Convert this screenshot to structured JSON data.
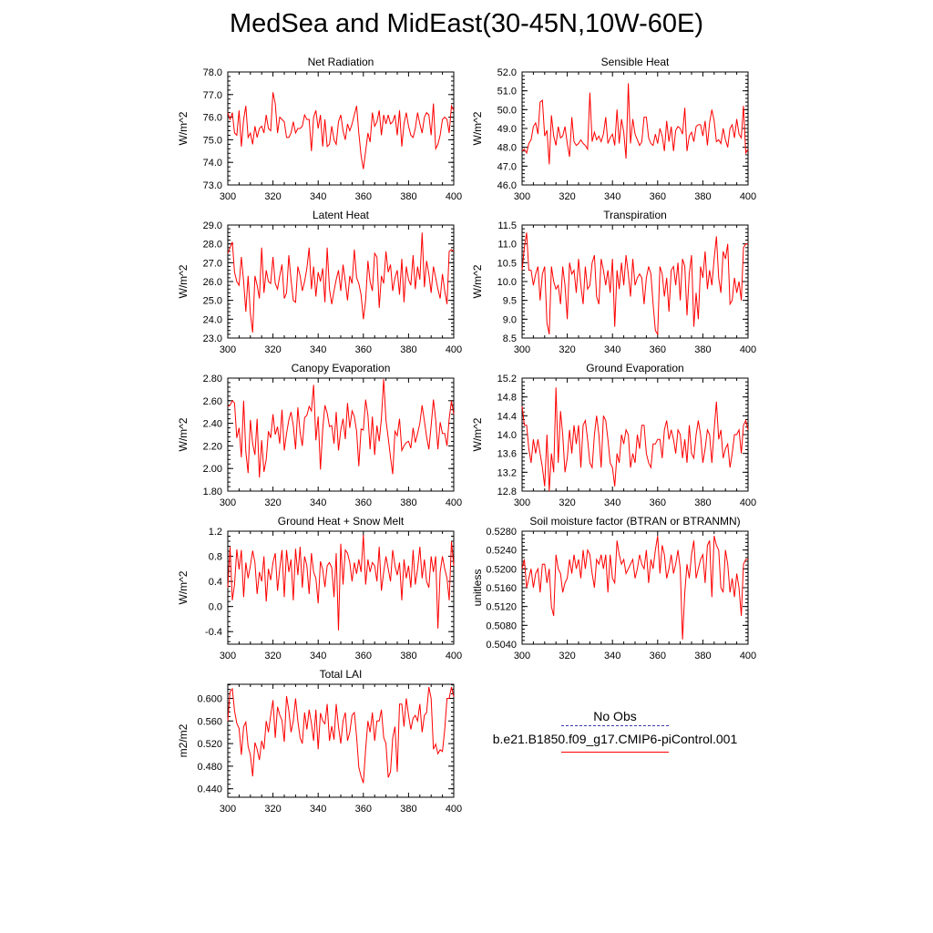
{
  "title": "MedSea and MidEast(30-45N,10W-60E)",
  "colors": {
    "series": "#ff0000",
    "axis": "#000000",
    "obs": "#3a3ab0"
  },
  "legend": {
    "obs_label": "No Obs",
    "case_label": "b.e21.B1850.f09_g17.CMIP6-piControl.001"
  },
  "chart_data": [
    {
      "type": "line",
      "title": "Net Radiation",
      "ylabel": "W/m^2",
      "xlim": [
        300,
        400
      ],
      "ylim": [
        73.0,
        78.0
      ],
      "xticks": [
        300,
        320,
        340,
        360,
        380,
        400
      ],
      "yticks": [
        73.0,
        74.0,
        75.0,
        76.0,
        77.0,
        78.0
      ],
      "ytick_labels": [
        "73.0",
        "74.0",
        "75.0",
        "76.0",
        "77.0",
        "78.0"
      ],
      "x_start": 300,
      "values": [
        76.2,
        75.9,
        76.2,
        75.3,
        75.2,
        76.3,
        74.7,
        75.9,
        76.5,
        75.1,
        75.3,
        74.8,
        75.6,
        75.1,
        75.5,
        75.6,
        75.3,
        76.1,
        75.5,
        75.4,
        77.1,
        76.6,
        75.3,
        76.0,
        75.9,
        75.8,
        75.1,
        75.1,
        75.3,
        75.8,
        75.3,
        75.5,
        75.5,
        75.6,
        76.1,
        75.9,
        75.9,
        74.5,
        76.0,
        76.3,
        75.5,
        76.1,
        74.7,
        75.9,
        74.7,
        74.8,
        75.6,
        75.0,
        74.8,
        75.8,
        76.1,
        75.4,
        75.0,
        75.7,
        75.4,
        75.7,
        76.1,
        76.5,
        75.3,
        74.3,
        73.7,
        74.5,
        75.3,
        74.9,
        76.2,
        75.6,
        75.8,
        76.3,
        75.2,
        76.1,
        75.7,
        76.1,
        75.7,
        75.8,
        76.1,
        75.2,
        76.3,
        74.7,
        75.7,
        76.2,
        75.6,
        75.2,
        75.1,
        75.5,
        76.2,
        75.7,
        75.3,
        76.0,
        76.2,
        76.1,
        75.2,
        76.6,
        74.6,
        74.8,
        75.2,
        75.9,
        76.0,
        75.9,
        75.3,
        76.5,
        76.3
      ]
    },
    {
      "type": "line",
      "title": "Sensible Heat",
      "ylabel": "W/m^2",
      "xlim": [
        300,
        400
      ],
      "ylim": [
        46.0,
        52.0
      ],
      "xticks": [
        300,
        320,
        340,
        360,
        380,
        400
      ],
      "yticks": [
        46.0,
        47.0,
        48.0,
        49.0,
        50.0,
        51.0,
        52.0
      ],
      "ytick_labels": [
        "46.0",
        "47.0",
        "48.0",
        "49.0",
        "50.0",
        "51.0",
        "52.0"
      ],
      "x_start": 300,
      "values": [
        47.8,
        47.9,
        47.7,
        48.2,
        48.4,
        49.1,
        49.3,
        48.7,
        50.4,
        50.5,
        48.6,
        48.9,
        47.1,
        49.7,
        48.6,
        48.1,
        49.1,
        48.5,
        48.6,
        49.1,
        48.2,
        47.5,
        49.6,
        48.3,
        48.1,
        48.2,
        48.4,
        48.2,
        48.1,
        47.9,
        50.9,
        48.3,
        48.8,
        48.4,
        48.6,
        48.3,
        48.7,
        49.6,
        48.2,
        48.5,
        48.7,
        48.1,
        50.0,
        48.2,
        49.5,
        48.8,
        47.4,
        51.4,
        48.2,
        49.5,
        48.7,
        48.4,
        48.1,
        48.3,
        49.6,
        49.6,
        48.5,
        48.2,
        48.1,
        48.7,
        48.2,
        49.0,
        48.6,
        47.8,
        49.4,
        48.3,
        49.1,
        47.8,
        48.9,
        49.1,
        49.0,
        48.7,
        50.1,
        47.8,
        48.6,
        48.8,
        48.3,
        49.1,
        49.2,
        49.2,
        48.6,
        49.4,
        48.1,
        49.3,
        50.0,
        49.4,
        48.3,
        48.4,
        48.2,
        49.0,
        48.4,
        48.0,
        49.0,
        49.2,
        48.5,
        49.5,
        48.7,
        48.5,
        50.2,
        47.7,
        47.9
      ]
    },
    {
      "type": "line",
      "title": "Latent Heat",
      "ylabel": "W/m^2",
      "xlim": [
        300,
        400
      ],
      "ylim": [
        23.0,
        29.0
      ],
      "xticks": [
        300,
        320,
        340,
        360,
        380,
        400
      ],
      "yticks": [
        23.0,
        24.0,
        25.0,
        26.0,
        27.0,
        28.0,
        29.0
      ],
      "ytick_labels": [
        "23.0",
        "24.0",
        "25.0",
        "26.0",
        "27.0",
        "28.0",
        "29.0"
      ],
      "x_start": 300,
      "values": [
        27.5,
        27.8,
        28.1,
        26.5,
        26.0,
        25.8,
        27.3,
        26.0,
        24.4,
        26.3,
        24.3,
        23.3,
        26.3,
        25.8,
        25.1,
        27.8,
        25.4,
        26.6,
        26.0,
        25.9,
        27.3,
        25.9,
        25.6,
        26.3,
        26.9,
        25.1,
        25.4,
        27.4,
        26.1,
        25.0,
        24.9,
        26.8,
        26.3,
        25.5,
        26.0,
        26.7,
        27.8,
        25.6,
        26.8,
        25.2,
        26.5,
        26.0,
        26.7,
        24.9,
        27.8,
        25.6,
        24.8,
        25.5,
        26.1,
        26.6,
        25.5,
        26.9,
        26.0,
        25.0,
        26.3,
        25.9,
        27.7,
        26.2,
        25.9,
        25.3,
        24.0,
        25.0,
        27.1,
        26.0,
        25.5,
        27.5,
        27.3,
        24.6,
        26.3,
        25.9,
        27.6,
        26.5,
        26.9,
        25.5,
        26.2,
        26.6,
        25.3,
        27.2,
        24.9,
        26.8,
        26.1,
        25.8,
        27.4,
        25.6,
        26.8,
        26.1,
        28.6,
        25.7,
        27.1,
        26.4,
        25.4,
        26.8,
        26.2,
        25.6,
        25.1,
        26.4,
        25.5,
        24.8,
        27.6,
        27.7,
        27.6
      ]
    },
    {
      "type": "line",
      "title": "Transpiration",
      "ylabel": "W/m^2",
      "xlim": [
        300,
        400
      ],
      "ylim": [
        8.5,
        11.5
      ],
      "xticks": [
        300,
        320,
        340,
        360,
        380,
        400
      ],
      "yticks": [
        8.5,
        9.0,
        9.5,
        10.0,
        10.5,
        11.0,
        11.5
      ],
      "ytick_labels": [
        "8.5",
        "9.0",
        "9.5",
        "10.0",
        "10.5",
        "11.0",
        "11.5"
      ],
      "x_start": 300,
      "values": [
        10.3,
        10.9,
        11.3,
        10.3,
        10.3,
        9.9,
        10.2,
        10.4,
        9.5,
        10.2,
        10.4,
        8.9,
        8.6,
        10.4,
        10.0,
        9.8,
        9.9,
        9.4,
        10.4,
        9.9,
        9.0,
        10.5,
        10.2,
        10.3,
        9.7,
        10.6,
        9.9,
        9.4,
        10.4,
        9.8,
        9.9,
        10.5,
        10.7,
        9.6,
        9.4,
        10.6,
        10.3,
        9.9,
        10.3,
        9.7,
        10.6,
        8.8,
        10.3,
        9.8,
        10.5,
        9.9,
        10.7,
        10.2,
        9.6,
        10.6,
        9.9,
        10.1,
        10.2,
        10.1,
        9.4,
        10.1,
        10.4,
        10.2,
        9.4,
        8.7,
        8.6,
        10.4,
        10.2,
        9.6,
        10.1,
        9.2,
        10.3,
        10.4,
        9.9,
        10.5,
        9.5,
        10.6,
        10.4,
        9.1,
        10.2,
        10.7,
        8.8,
        9.7,
        9.0,
        10.4,
        10.1,
        10.8,
        9.8,
        10.3,
        9.9,
        10.6,
        11.2,
        10.1,
        9.7,
        10.8,
        10.6,
        11.0,
        9.4,
        9.5,
        10.1,
        9.7,
        10.0,
        9.5,
        10.9,
        11.0,
        11.0
      ]
    },
    {
      "type": "line",
      "title": "Canopy Evaporation",
      "ylabel": "W/m^2",
      "xlim": [
        300,
        400
      ],
      "ylim": [
        1.8,
        2.8
      ],
      "xticks": [
        300,
        320,
        340,
        360,
        380,
        400
      ],
      "yticks": [
        1.8,
        2.0,
        2.2,
        2.4,
        2.6,
        2.8
      ],
      "ytick_labels": [
        "1.80",
        "2.00",
        "2.20",
        "2.40",
        "2.60",
        "2.80"
      ],
      "x_start": 300,
      "values": [
        2.55,
        2.56,
        2.6,
        2.58,
        2.27,
        2.36,
        2.1,
        2.6,
        2.15,
        1.96,
        2.43,
        2.22,
        2.12,
        2.44,
        1.92,
        2.25,
        1.97,
        2.08,
        2.33,
        2.27,
        2.48,
        2.3,
        2.37,
        2.22,
        2.52,
        2.16,
        2.31,
        2.43,
        2.5,
        2.38,
        2.17,
        2.54,
        2.32,
        2.2,
        2.45,
        2.47,
        2.55,
        2.51,
        2.74,
        2.25,
        2.46,
        1.99,
        2.35,
        2.56,
        2.49,
        2.37,
        2.38,
        2.22,
        2.5,
        2.16,
        2.34,
        2.44,
        2.26,
        2.58,
        2.36,
        2.51,
        2.46,
        2.33,
        2.02,
        2.35,
        2.34,
        2.61,
        2.47,
        2.17,
        2.46,
        2.12,
        2.38,
        2.24,
        2.44,
        2.79,
        2.43,
        2.27,
        2.1,
        1.95,
        2.33,
        2.29,
        2.44,
        2.16,
        2.2,
        2.23,
        2.24,
        2.18,
        2.36,
        2.23,
        2.31,
        2.4,
        2.56,
        2.42,
        2.28,
        2.17,
        2.38,
        2.61,
        2.43,
        2.17,
        2.41,
        2.31,
        2.31,
        2.2,
        2.44,
        2.6,
        2.48
      ]
    },
    {
      "type": "line",
      "title": "Ground Evaporation",
      "ylabel": "W/m^2",
      "xlim": [
        300,
        400
      ],
      "ylim": [
        12.8,
        15.2
      ],
      "xticks": [
        300,
        320,
        340,
        360,
        380,
        400
      ],
      "yticks": [
        12.8,
        13.2,
        13.6,
        14.0,
        14.4,
        14.8,
        15.2
      ],
      "ytick_labels": [
        "12.8",
        "13.2",
        "13.6",
        "14.0",
        "14.4",
        "14.8",
        "15.2"
      ],
      "x_start": 300,
      "values": [
        14.6,
        14.2,
        14.2,
        13.7,
        13.4,
        13.9,
        13.6,
        13.9,
        13.6,
        13.3,
        12.9,
        14.0,
        12.8,
        13.6,
        13.2,
        15.0,
        13.4,
        14.5,
        14.0,
        13.2,
        13.5,
        14.1,
        13.6,
        14.2,
        13.8,
        14.2,
        13.3,
        14.2,
        14.3,
        13.9,
        13.4,
        13.3,
        14.0,
        14.4,
        14.0,
        13.3,
        14.4,
        14.3,
        13.9,
        13.4,
        13.3,
        12.9,
        13.6,
        13.4,
        14.0,
        13.8,
        14.1,
        14.0,
        13.3,
        13.6,
        13.4,
        14.0,
        13.7,
        14.2,
        14.2,
        13.6,
        13.4,
        13.3,
        13.8,
        13.8,
        13.9,
        13.9,
        13.5,
        14.1,
        14.3,
        13.9,
        14.1,
        13.9,
        13.6,
        14.1,
        14.0,
        13.5,
        13.9,
        13.4,
        14.2,
        13.6,
        13.5,
        14.0,
        14.3,
        14.0,
        13.4,
        13.7,
        14.1,
        14.0,
        13.4,
        14.1,
        14.7,
        13.9,
        14.1,
        13.5,
        13.7,
        13.8,
        13.3,
        13.6,
        14.0,
        14.0,
        14.1,
        13.6,
        14.2,
        14.3,
        14.1
      ]
    },
    {
      "type": "line",
      "title": "Ground Heat + Snow Melt",
      "ylabel": "W/m^2",
      "xlim": [
        300,
        400
      ],
      "ylim": [
        -0.6,
        1.2
      ],
      "xticks": [
        300,
        320,
        340,
        360,
        380,
        400
      ],
      "yticks": [
        -0.4,
        0.0,
        0.4,
        0.8,
        1.2
      ],
      "ytick_labels": [
        "-0.4",
        "0.0",
        "0.4",
        "0.8",
        "1.2"
      ],
      "x_start": 300,
      "values": [
        0.3,
        0.95,
        0.1,
        0.35,
        0.91,
        0.59,
        0.9,
        0.15,
        0.7,
        0.45,
        0.65,
        0.89,
        0.7,
        0.2,
        0.55,
        0.4,
        0.8,
        0.08,
        0.6,
        0.42,
        0.7,
        0.85,
        0.25,
        0.6,
        0.9,
        0.15,
        0.9,
        0.55,
        0.75,
        0.1,
        0.92,
        0.5,
        0.95,
        0.3,
        0.8,
        0.65,
        0.2,
        0.85,
        0.55,
        0.45,
        0.05,
        0.72,
        0.59,
        0.31,
        0.65,
        0.7,
        0.62,
        0.15,
        0.85,
        -0.38,
        1.0,
        0.35,
        0.9,
        0.85,
        0.7,
        0.4,
        0.7,
        0.52,
        0.75,
        0.55,
        1.14,
        0.35,
        0.75,
        0.55,
        0.7,
        0.65,
        0.4,
        0.95,
        0.25,
        0.55,
        0.8,
        0.6,
        0.4,
        0.9,
        0.65,
        0.5,
        0.7,
        0.1,
        0.75,
        0.45,
        0.65,
        0.3,
        0.9,
        0.35,
        0.6,
        0.95,
        0.45,
        0.75,
        0.4,
        0.3,
        0.8,
        0.55,
        0.8,
        -0.35,
        0.55,
        0.8,
        0.6,
        0.45,
        0.1,
        1.04,
        0.65
      ]
    },
    {
      "type": "line",
      "title": "Soil moisture factor (BTRAN or BTRANMN)",
      "ylabel": "unitless",
      "xlim": [
        300,
        400
      ],
      "ylim": [
        0.504,
        0.528
      ],
      "xticks": [
        300,
        320,
        340,
        360,
        380,
        400
      ],
      "yticks": [
        0.504,
        0.508,
        0.512,
        0.516,
        0.52,
        0.524,
        0.528
      ],
      "ytick_labels": [
        "0.5040",
        "0.5080",
        "0.5120",
        "0.5160",
        "0.5200",
        "0.5240",
        "0.5280"
      ],
      "x_start": 300,
      "values": [
        0.52,
        0.522,
        0.516,
        0.518,
        0.52,
        0.516,
        0.519,
        0.52,
        0.515,
        0.521,
        0.521,
        0.517,
        0.52,
        0.512,
        0.51,
        0.523,
        0.52,
        0.519,
        0.515,
        0.517,
        0.518,
        0.522,
        0.519,
        0.523,
        0.52,
        0.522,
        0.518,
        0.524,
        0.52,
        0.524,
        0.523,
        0.519,
        0.516,
        0.522,
        0.521,
        0.523,
        0.52,
        0.523,
        0.515,
        0.523,
        0.518,
        0.517,
        0.526,
        0.523,
        0.521,
        0.522,
        0.519,
        0.52,
        0.521,
        0.522,
        0.518,
        0.52,
        0.523,
        0.521,
        0.52,
        0.524,
        0.517,
        0.522,
        0.52,
        0.524,
        0.527,
        0.519,
        0.525,
        0.523,
        0.518,
        0.52,
        0.523,
        0.519,
        0.521,
        0.524,
        0.52,
        0.505,
        0.515,
        0.521,
        0.518,
        0.523,
        0.526,
        0.518,
        0.52,
        0.522,
        0.523,
        0.517,
        0.525,
        0.526,
        0.514,
        0.527,
        0.525,
        0.524,
        0.516,
        0.515,
        0.524,
        0.521,
        0.515,
        0.518,
        0.514,
        0.519,
        0.516,
        0.51,
        0.521,
        0.522,
        0.522
      ]
    },
    {
      "type": "line",
      "title": "Total LAI",
      "ylabel": "m2/m2",
      "xlim": [
        300,
        400
      ],
      "ylim": [
        0.425,
        0.625
      ],
      "xticks": [
        300,
        320,
        340,
        360,
        380,
        400
      ],
      "yticks": [
        0.44,
        0.48,
        0.52,
        0.56,
        0.6
      ],
      "ytick_labels": [
        "0.440",
        "0.480",
        "0.520",
        "0.560",
        "0.600"
      ],
      "x_start": 300,
      "values": [
        0.56,
        0.612,
        0.617,
        0.578,
        0.556,
        0.547,
        0.5,
        0.55,
        0.558,
        0.515,
        0.5,
        0.462,
        0.522,
        0.51,
        0.491,
        0.525,
        0.51,
        0.56,
        0.54,
        0.57,
        0.597,
        0.53,
        0.585,
        0.571,
        0.561,
        0.523,
        0.604,
        0.578,
        0.54,
        0.56,
        0.6,
        0.56,
        0.53,
        0.52,
        0.575,
        0.545,
        0.58,
        0.556,
        0.525,
        0.58,
        0.51,
        0.574,
        0.56,
        0.555,
        0.59,
        0.525,
        0.551,
        0.527,
        0.59,
        0.55,
        0.52,
        0.56,
        0.575,
        0.525,
        0.54,
        0.57,
        0.575,
        0.532,
        0.478,
        0.462,
        0.45,
        0.51,
        0.56,
        0.54,
        0.575,
        0.525,
        0.56,
        0.56,
        0.58,
        0.531,
        0.52,
        0.46,
        0.47,
        0.53,
        0.55,
        0.47,
        0.59,
        0.59,
        0.55,
        0.6,
        0.57,
        0.545,
        0.565,
        0.57,
        0.56,
        0.59,
        0.54,
        0.57,
        0.575,
        0.62,
        0.6,
        0.51,
        0.519,
        0.502,
        0.509,
        0.506,
        0.545,
        0.6,
        0.6,
        0.62,
        0.603
      ]
    }
  ]
}
